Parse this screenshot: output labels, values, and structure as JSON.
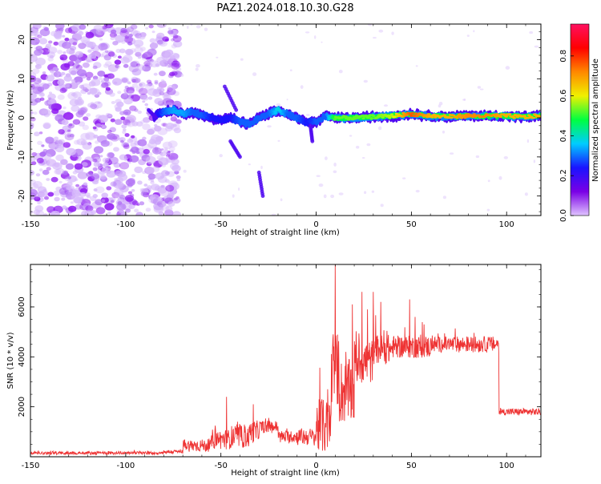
{
  "title": "PAZ1.2024.018.10.30.G28",
  "chart_data": [
    {
      "type": "heatmap",
      "xlabel": "Height of straight line (km)",
      "ylabel": "Frequency (Hz)",
      "xlim": [
        -150,
        118
      ],
      "ylim": [
        -25,
        24
      ],
      "xticks": [
        -150,
        -100,
        -50,
        0,
        50,
        100
      ],
      "yticks": [
        -20,
        -10,
        0,
        10,
        20
      ],
      "colorbar": {
        "label": "Normalized spectral amplitude",
        "range": [
          0,
          0.96
        ],
        "ticks": [
          0.0,
          0.2,
          0.4,
          0.6,
          0.8
        ],
        "colormap": [
          "#e0c4ff",
          "#7a00e6",
          "#1a14ff",
          "#00ccff",
          "#00ff40",
          "#f0f000",
          "#ff8800",
          "#ff0000",
          "#ff1060"
        ]
      },
      "signal_track": {
        "x": [
          -85,
          -80,
          -75,
          -70,
          -65,
          -60,
          -55,
          -50,
          -45,
          -40,
          -35,
          -30,
          -25,
          -20,
          -15,
          -10,
          -5,
          0,
          5,
          10,
          20,
          30,
          40,
          50,
          60,
          70,
          80,
          90,
          100,
          110,
          118
        ],
        "y": [
          0.5,
          1.5,
          2,
          1,
          1.5,
          0.5,
          0,
          -0.5,
          0,
          -1,
          -1.5,
          0,
          1,
          2,
          1,
          0,
          -1,
          -1.2,
          0.5,
          0,
          0,
          0.3,
          0.5,
          1,
          0.5,
          0.3,
          0.5,
          0.5,
          0.5,
          0.2,
          0.5
        ],
        "amp": [
          0.2,
          0.3,
          0.35,
          0.35,
          0.3,
          0.3,
          0.25,
          0.25,
          0.25,
          0.3,
          0.3,
          0.3,
          0.3,
          0.4,
          0.3,
          0.3,
          0.25,
          0.3,
          0.3,
          0.55,
          0.55,
          0.55,
          0.6,
          0.8,
          0.7,
          0.7,
          0.75,
          0.75,
          0.7,
          0.7,
          0.7
        ]
      },
      "noise_region": {
        "x_range": [
          -150,
          -72
        ],
        "amp": 0.15
      }
    },
    {
      "type": "line",
      "xlabel": "Height of straight line (km)",
      "ylabel": "SNR (10 * v/v)",
      "xlim": [
        -150,
        118
      ],
      "ylim": [
        0,
        7700
      ],
      "xticks": [
        -150,
        -100,
        -50,
        0,
        50,
        100
      ],
      "yticks": [
        2000,
        4000,
        6000
      ],
      "color": "#ee3333",
      "segments": [
        {
          "x": [
            -150,
            -80
          ],
          "mean": 150,
          "spread": 60
        },
        {
          "x": [
            -80,
            -70
          ],
          "mean": 200,
          "spread": 80
        },
        {
          "x": [
            -70,
            -55
          ],
          "mean": 450,
          "spread": 250
        },
        {
          "x": [
            -55,
            -45
          ],
          "mean": 700,
          "spread": 400
        },
        {
          "x": [
            -45,
            -35
          ],
          "mean": 800,
          "spread": 450
        },
        {
          "x": [
            -35,
            -30
          ],
          "mean": 1000,
          "spread": 450
        },
        {
          "x": [
            -30,
            -20
          ],
          "mean": 1200,
          "spread": 250
        },
        {
          "x": [
            -20,
            -10
          ],
          "mean": 800,
          "spread": 250
        },
        {
          "x": [
            -10,
            0
          ],
          "mean": 800,
          "spread": 350
        },
        {
          "x": [
            0,
            8
          ],
          "mean": 1200,
          "spread": 1100
        },
        {
          "x": [
            8,
            12
          ],
          "mean": 3500,
          "spread": 1500
        },
        {
          "x": [
            12,
            20
          ],
          "mean": 2600,
          "spread": 1300
        },
        {
          "x": [
            20,
            30
          ],
          "mean": 3800,
          "spread": 900
        },
        {
          "x": [
            30,
            40
          ],
          "mean": 4300,
          "spread": 600
        },
        {
          "x": [
            40,
            60
          ],
          "mean": 4400,
          "spread": 450
        },
        {
          "x": [
            60,
            96
          ],
          "mean": 4500,
          "spread": 320
        },
        {
          "x": [
            96,
            118
          ],
          "mean": 1800,
          "spread": 140
        }
      ],
      "peaks": [
        {
          "x": 10,
          "y": 7700
        },
        {
          "x": 9,
          "y": 4900
        },
        {
          "x": 19,
          "y": 6100
        },
        {
          "x": 24,
          "y": 6600
        },
        {
          "x": 27,
          "y": 5900
        },
        {
          "x": 30,
          "y": 6600
        },
        {
          "x": 34,
          "y": 6200
        },
        {
          "x": 49,
          "y": 6300
        },
        {
          "x": 52,
          "y": 5600
        },
        {
          "x": -47,
          "y": 2400
        },
        {
          "x": -33,
          "y": 2100
        },
        {
          "x": 3,
          "y": 2300
        },
        {
          "x": 6,
          "y": 2700
        }
      ]
    }
  ]
}
